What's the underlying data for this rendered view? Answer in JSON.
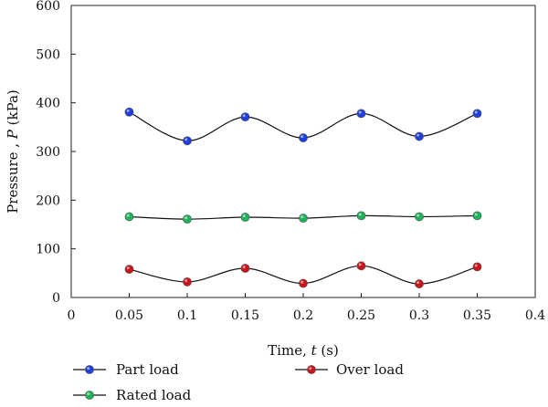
{
  "chart_data": {
    "type": "line",
    "xlabel": {
      "main": "Time, ",
      "var": "t",
      "unit": " (s)"
    },
    "ylabel": {
      "main": "Pressure , ",
      "var": "P",
      "unit": " (kPa)"
    },
    "xlim": [
      0,
      0.4
    ],
    "ylim": [
      0,
      600
    ],
    "x_ticks": [
      0,
      0.05,
      0.1,
      0.15,
      0.2,
      0.25,
      0.3,
      0.35,
      0.4
    ],
    "x_tick_labels": [
      "0",
      "0.05",
      "0.1",
      "0.15",
      "0.2",
      "0.25",
      "0.3",
      "0.35",
      "0.4"
    ],
    "y_ticks": [
      0,
      100,
      200,
      300,
      400,
      500,
      600
    ],
    "y_tick_labels": [
      "0",
      "100",
      "200",
      "300",
      "400",
      "500",
      "600"
    ],
    "grid": false,
    "legend_position": "bottom",
    "x": [
      0.05,
      0.1,
      0.15,
      0.2,
      0.25,
      0.3,
      0.35
    ],
    "series": [
      {
        "key": "part",
        "name": "Part load",
        "color": "#1f3fdc",
        "values": [
          381,
          322,
          371,
          328,
          378,
          331,
          378
        ]
      },
      {
        "key": "rated",
        "name": "Rated load",
        "color": "#1fb25a",
        "values": [
          166,
          161,
          165,
          163,
          168,
          166,
          168
        ]
      },
      {
        "key": "over",
        "name": "Over load",
        "color": "#c8161d",
        "values": [
          58,
          32,
          60,
          29,
          65,
          28,
          63
        ]
      }
    ]
  }
}
